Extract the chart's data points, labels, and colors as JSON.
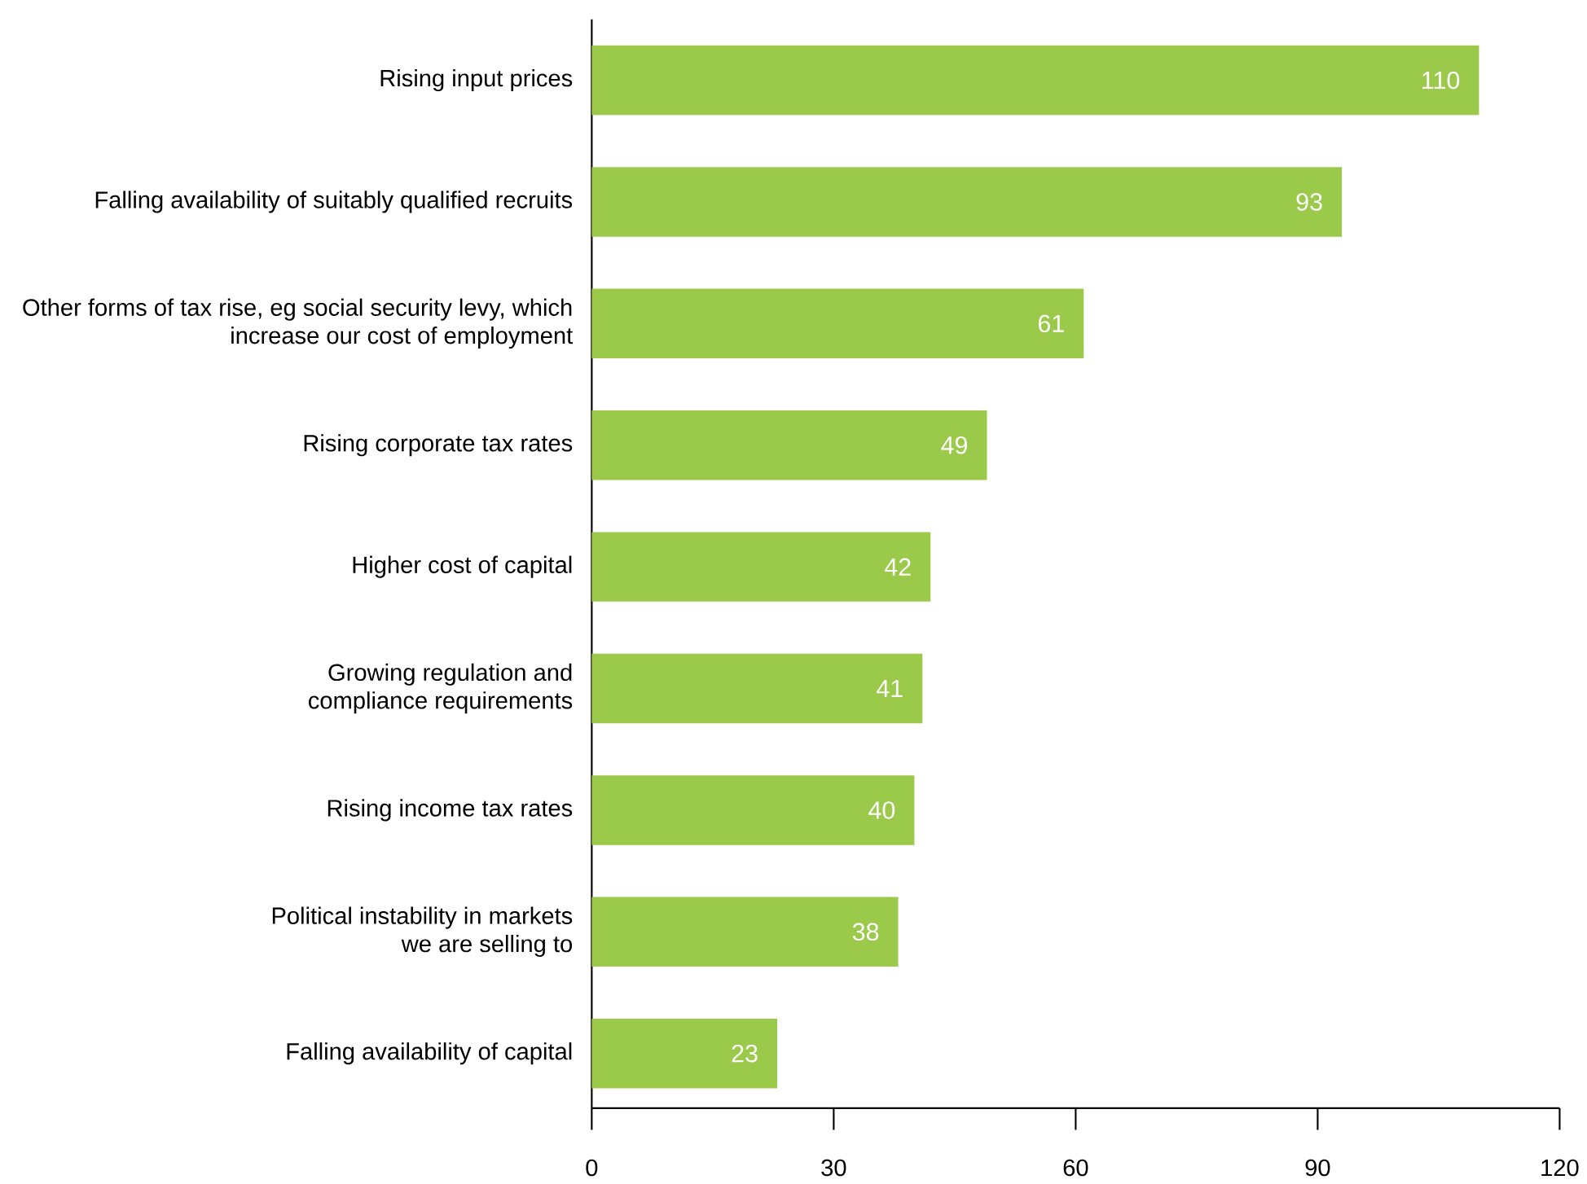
{
  "chart_data": {
    "type": "bar",
    "orientation": "horizontal",
    "categories": [
      "Rising input prices",
      "Falling availability of suitably qualified recruits",
      "Other forms of tax rise, eg social security levy, which increase our cost of employment",
      "Rising corporate tax rates",
      "Higher cost of capital",
      "Growing regulation and compliance requirements",
      "Rising income tax rates",
      "Political instability in markets we are selling to",
      "Falling availability of capital"
    ],
    "values": [
      110,
      93,
      61,
      49,
      42,
      41,
      40,
      38,
      23
    ],
    "color": "#9bca4b",
    "data_labels": true,
    "xlim": [
      0,
      120
    ],
    "xticks": [
      0,
      30,
      60,
      90,
      120
    ]
  }
}
